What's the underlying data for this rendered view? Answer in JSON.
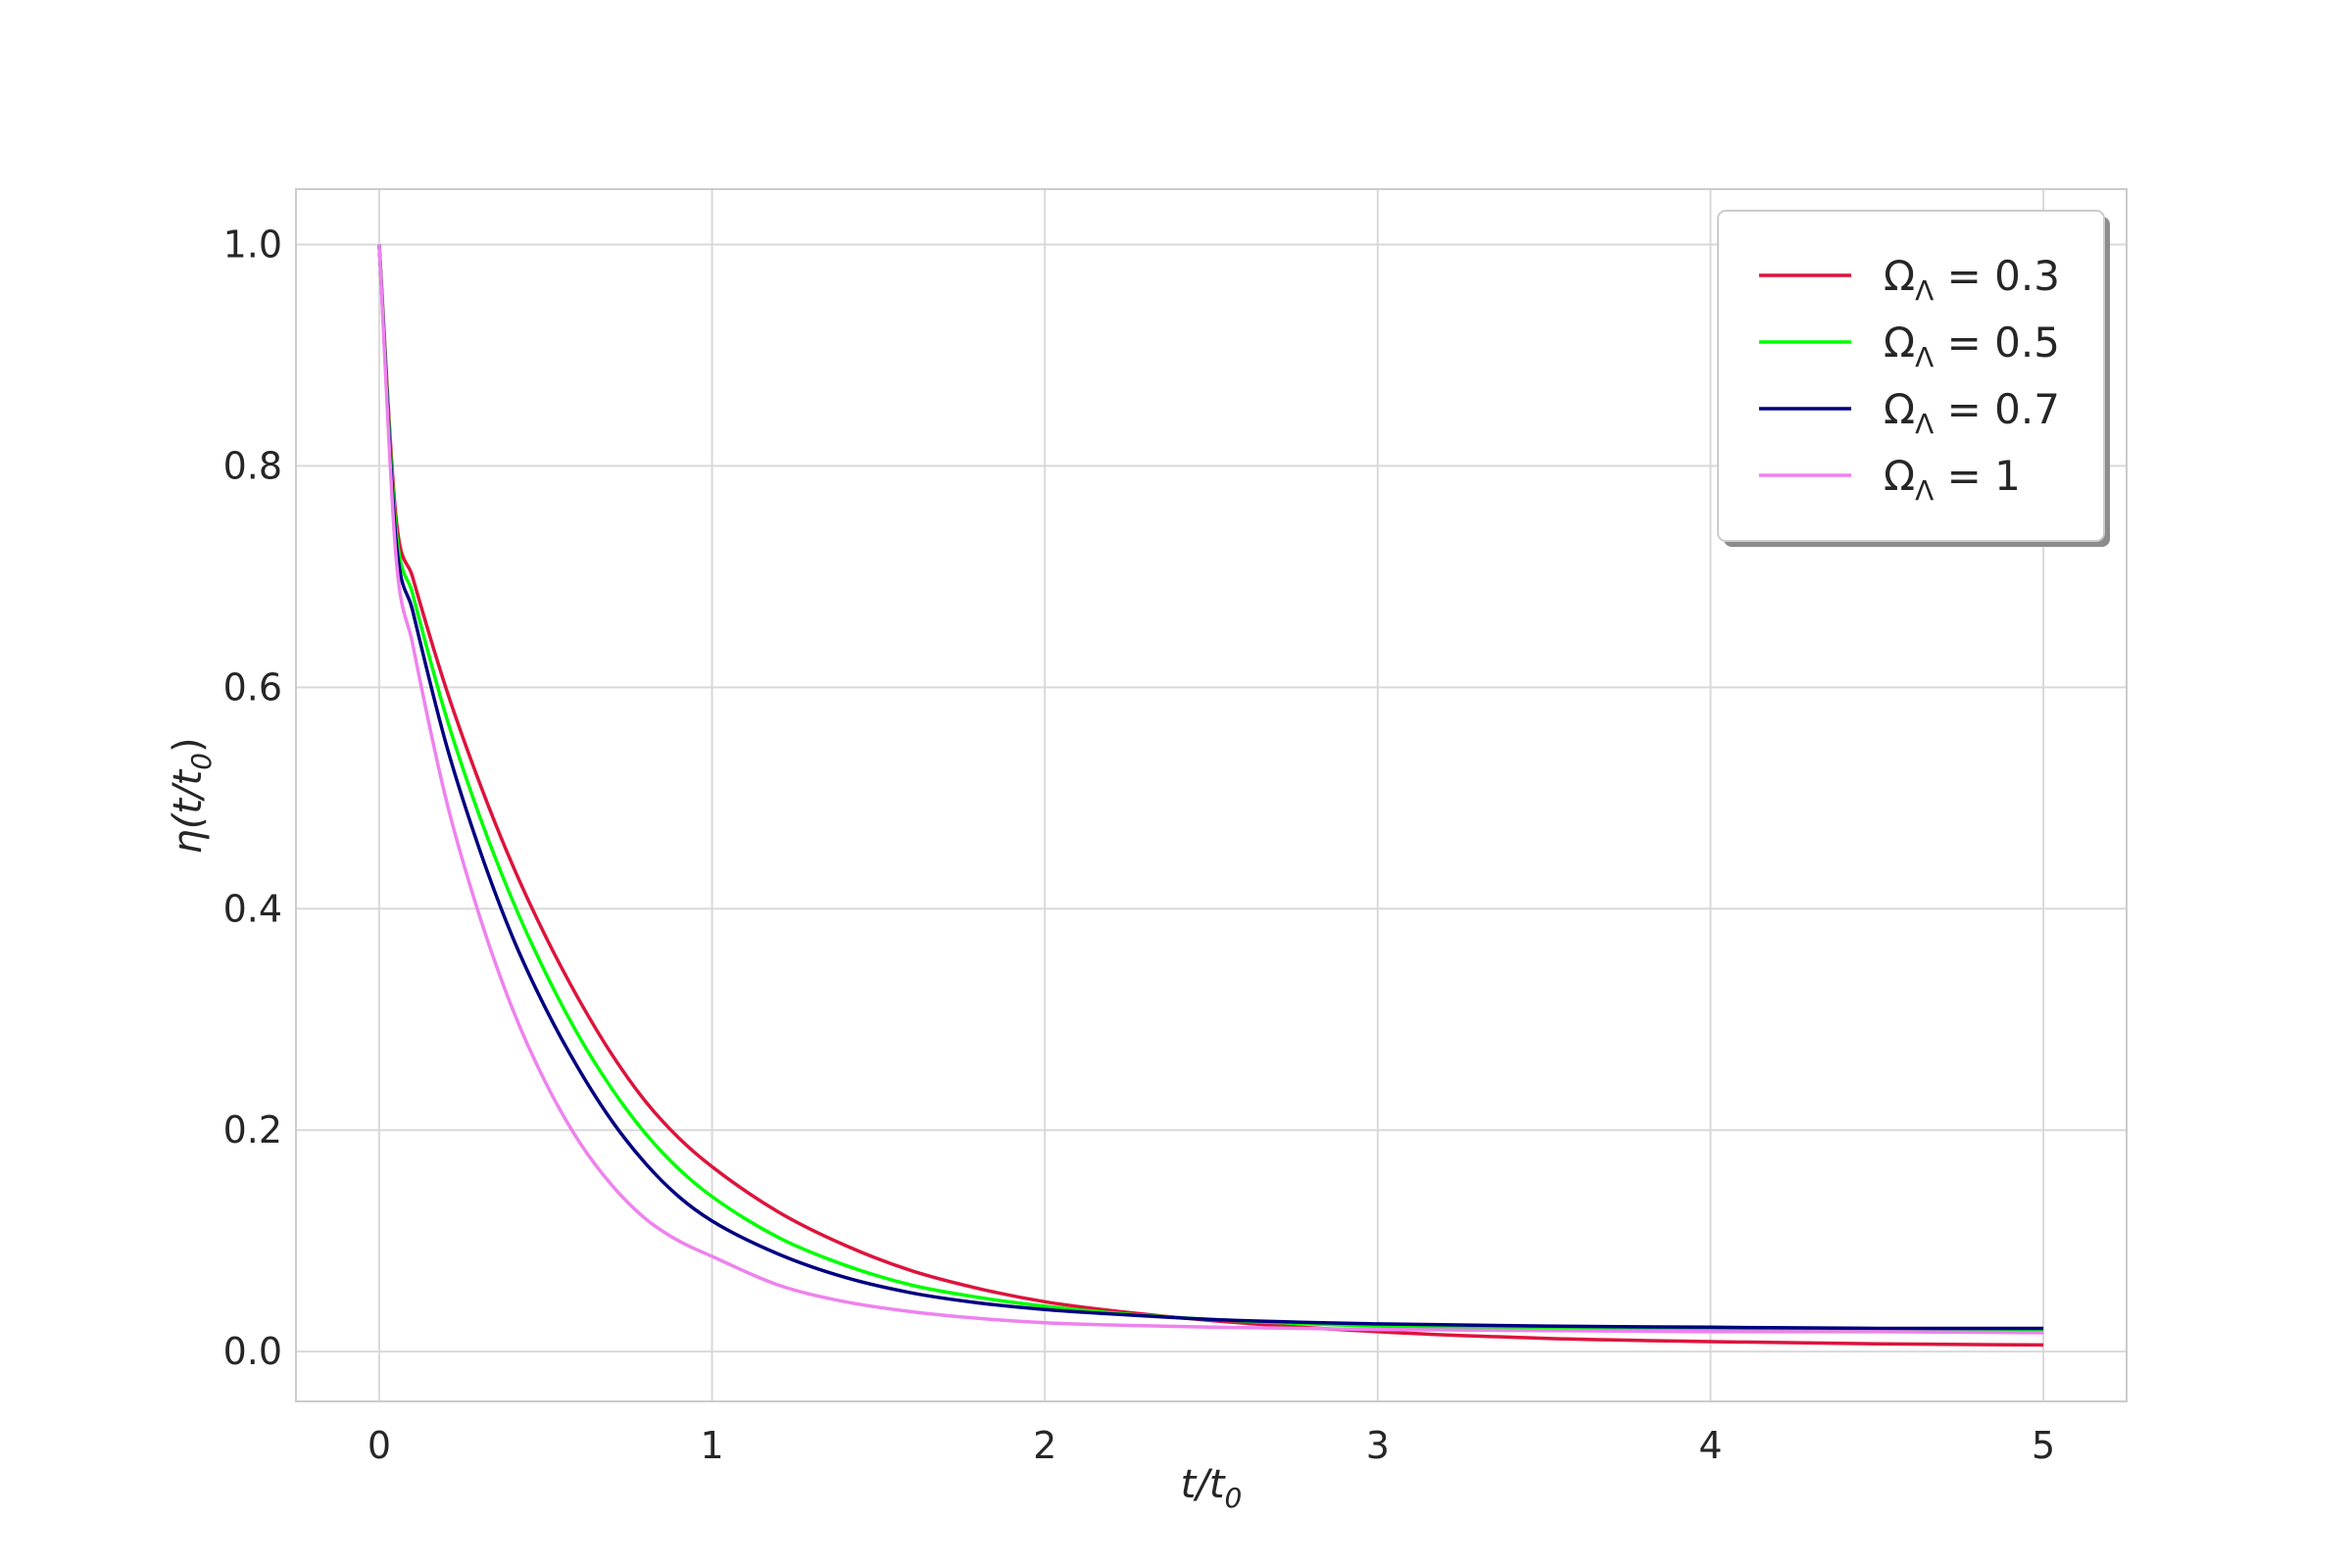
{
  "chart_data": {
    "type": "line",
    "title": "",
    "xlabel": {
      "main": "t/t",
      "sub": "0"
    },
    "ylabel": {
      "main": "η(t/t",
      "sub": "0",
      "close": ")"
    },
    "xlim": [
      -0.25,
      5.25
    ],
    "ylim": [
      -0.045,
      1.05
    ],
    "xticks": [
      0,
      1,
      2,
      3,
      4,
      5
    ],
    "xtick_labels": [
      "0",
      "1",
      "2",
      "3",
      "4",
      "5"
    ],
    "yticks": [
      0.0,
      0.2,
      0.4,
      0.6,
      0.8,
      1.0
    ],
    "ytick_labels": [
      "0.0",
      "0.2",
      "0.4",
      "0.6",
      "0.8",
      "1.0"
    ],
    "grid": true,
    "legend_position": "top-right",
    "x": [
      0,
      0.05,
      0.1,
      0.2,
      0.3,
      0.4,
      0.5,
      0.6,
      0.7,
      0.8,
      0.9,
      1.0,
      1.2,
      1.4,
      1.6,
      1.8,
      2.0,
      2.2,
      2.5,
      3.0,
      3.5,
      4.0,
      4.5,
      5.0
    ],
    "series": [
      {
        "name": "ΩΛ = 0.3",
        "label_main": "Ω",
        "label_sub": "Λ",
        "label_value": " = 0.3",
        "color": "#dc143c",
        "values": [
          1.0,
          0.755,
          0.7,
          0.6,
          0.515,
          0.44,
          0.375,
          0.318,
          0.268,
          0.226,
          0.193,
          0.167,
          0.126,
          0.096,
          0.073,
          0.057,
          0.045,
          0.037,
          0.028,
          0.018,
          0.012,
          0.009,
          0.007,
          0.006
        ]
      },
      {
        "name": "ΩΛ = 0.5",
        "label_main": "Ω",
        "label_sub": "Λ",
        "label_value": " = 0.5",
        "color": "#00ff00",
        "values": [
          1.0,
          0.745,
          0.685,
          0.575,
          0.485,
          0.408,
          0.342,
          0.285,
          0.237,
          0.197,
          0.165,
          0.14,
          0.103,
          0.078,
          0.06,
          0.049,
          0.041,
          0.035,
          0.029,
          0.023,
          0.021,
          0.02,
          0.019,
          0.018
        ]
      },
      {
        "name": "ΩΛ = 0.7",
        "label_main": "Ω",
        "label_sub": "Λ",
        "label_value": " = 0.7",
        "color": "#000080",
        "values": [
          1.0,
          0.735,
          0.67,
          0.55,
          0.455,
          0.375,
          0.31,
          0.255,
          0.208,
          0.17,
          0.14,
          0.118,
          0.088,
          0.067,
          0.053,
          0.044,
          0.038,
          0.034,
          0.029,
          0.025,
          0.023,
          0.022,
          0.021,
          0.021
        ]
      },
      {
        "name": "ΩΛ = 1",
        "label_main": "Ω",
        "label_sub": "Λ",
        "label_value": " = 1",
        "color": "#ee82ee",
        "values": [
          1.0,
          0.72,
          0.64,
          0.5,
          0.395,
          0.31,
          0.243,
          0.19,
          0.15,
          0.12,
          0.1,
          0.086,
          0.06,
          0.045,
          0.036,
          0.03,
          0.026,
          0.024,
          0.022,
          0.02,
          0.019,
          0.018,
          0.018,
          0.017
        ]
      }
    ]
  }
}
